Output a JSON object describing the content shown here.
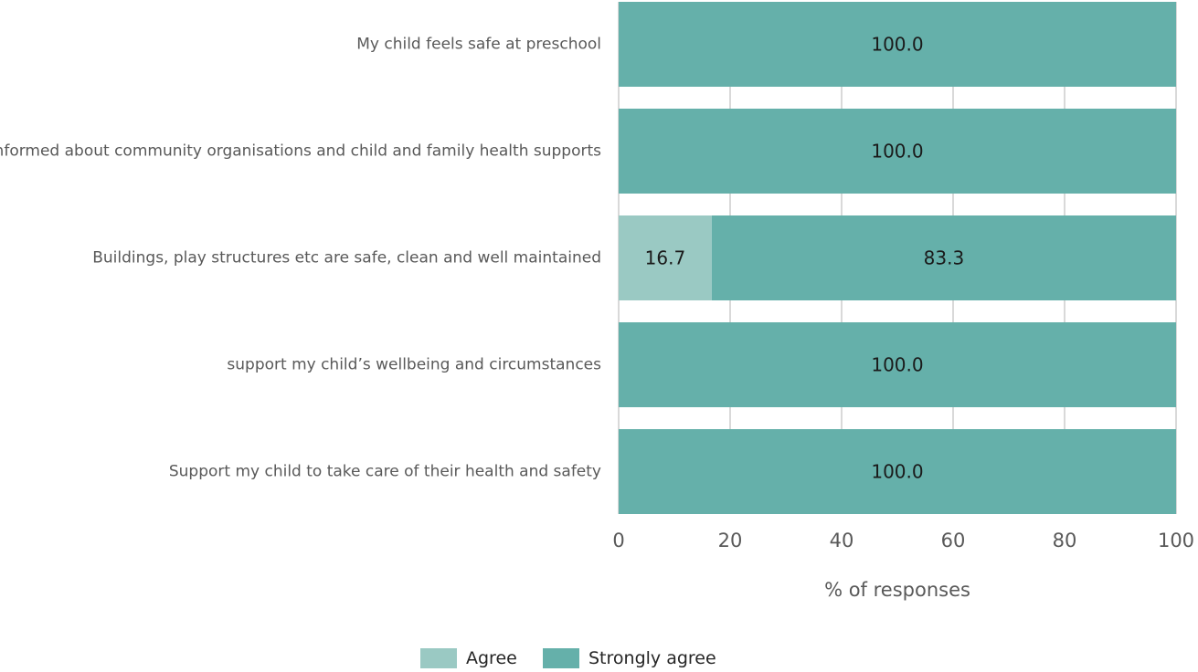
{
  "chart_data": {
    "type": "bar",
    "orientation": "horizontal",
    "stacked": true,
    "categories": [
      "My child feels safe at preschool",
      "Informed about community organisations and child and family health supports",
      "Buildings, play structures etc are safe, clean and well maintained",
      "support my child’s wellbeing and circumstances",
      "Support my child to take care of their health and safety"
    ],
    "series": [
      {
        "name": "Agree",
        "color": "#9ac9c3",
        "values": [
          0,
          0,
          16.7,
          0,
          0
        ],
        "labels": [
          "",
          "",
          "16.7",
          "",
          ""
        ]
      },
      {
        "name": "Strongly agree",
        "color": "#65b0aa",
        "values": [
          100,
          100,
          83.3,
          100,
          100
        ],
        "labels": [
          "100.0",
          "100.0",
          "83.3",
          "100.0",
          "100.0"
        ]
      }
    ],
    "xlabel": "% of responses",
    "ylabel": "",
    "xlim": [
      0,
      100
    ],
    "xticks": [
      0,
      20,
      40,
      60,
      80,
      100
    ],
    "xtick_labels": [
      "0",
      "20",
      "40",
      "60",
      "80",
      "100"
    ],
    "grid": true,
    "grid_color": "#d9d9d9",
    "legend_position": "bottom"
  }
}
